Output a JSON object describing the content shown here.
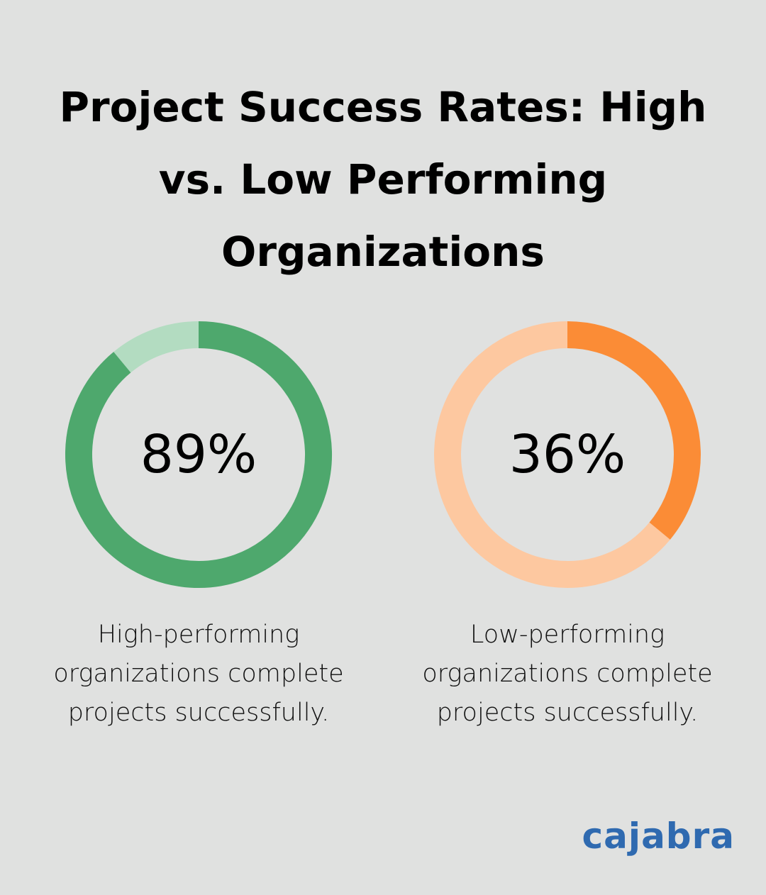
{
  "title": "Project Success Rates: High vs. Low Performing Organizations",
  "chart_data": [
    {
      "type": "donut",
      "values": [
        89
      ],
      "value_labels": [
        "89%"
      ],
      "ylim": [
        0,
        100
      ],
      "color": "#4ea86d",
      "track_color": "#b3dcc1",
      "caption": "High-performing organizations complete projects successfully."
    },
    {
      "type": "donut",
      "values": [
        36
      ],
      "value_labels": [
        "36%"
      ],
      "ylim": [
        0,
        100
      ],
      "color": "#fb8c36",
      "track_color": "#fdc8a0",
      "caption": "Low-performing organizations complete projects successfully."
    }
  ],
  "brand": "cajabra"
}
